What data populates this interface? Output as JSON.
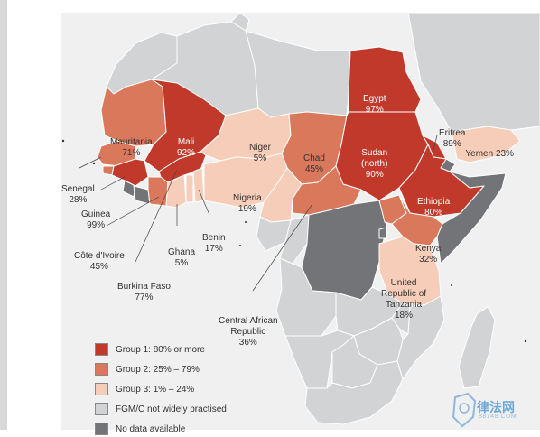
{
  "colors": {
    "group1": "#c0392b",
    "group2": "#d9785a",
    "group3": "#f6cdb8",
    "not_practised": "#d2d3d5",
    "no_data": "#737477",
    "sea": "#f0f0f1"
  },
  "countries": {
    "egypt": {
      "name": "Egypt",
      "value": "97%"
    },
    "mali": {
      "name": "Mali",
      "value": "92%"
    },
    "sudan": {
      "name": "Sudan\n(north)",
      "value": "90%"
    },
    "eritrea": {
      "name": "Eritrea",
      "value": "89%"
    },
    "ethiopia": {
      "name": "Ethiopia",
      "value": "80%"
    },
    "mauritania": {
      "name": "Mauritania",
      "value": "71%"
    },
    "niger": {
      "name": "Niger",
      "value": "5%"
    },
    "chad": {
      "name": "Chad",
      "value": "45%"
    },
    "nigeria": {
      "name": "Nigeria",
      "value": "19%"
    },
    "yemen": {
      "name": "Yemen",
      "value": "23%"
    },
    "senegal": {
      "name": "Senegal",
      "value": "28%"
    },
    "guinea": {
      "name": "Guinea",
      "value": "99%"
    },
    "cote_divoire": {
      "name": "Côte d'Ivoire",
      "value": "45%"
    },
    "burkina_faso": {
      "name": "Burkina Faso",
      "value": "77%"
    },
    "ghana": {
      "name": "Ghana",
      "value": "5%"
    },
    "benin": {
      "name": "Benin",
      "value": "17%"
    },
    "kenya": {
      "name": "Kenya",
      "value": "32%"
    },
    "tanzania": {
      "name": "United\nRepublic of\nTanzania",
      "value": "18%"
    },
    "car": {
      "name": "Central African\nRepublic",
      "value": "36%"
    }
  },
  "legend": [
    {
      "label": "Group 1: 80% or more",
      "color_key": "group1"
    },
    {
      "label": "Group 2: 25% – 79%",
      "color_key": "group2"
    },
    {
      "label": "Group 3: 1% – 24%",
      "color_key": "group3"
    },
    {
      "label": "FGM/C not widely practised",
      "color_key": "not_practised"
    },
    {
      "label": "No data available",
      "color_key": "no_data"
    }
  ],
  "watermark": {
    "brand": "律法网",
    "url": "88148.COM"
  }
}
